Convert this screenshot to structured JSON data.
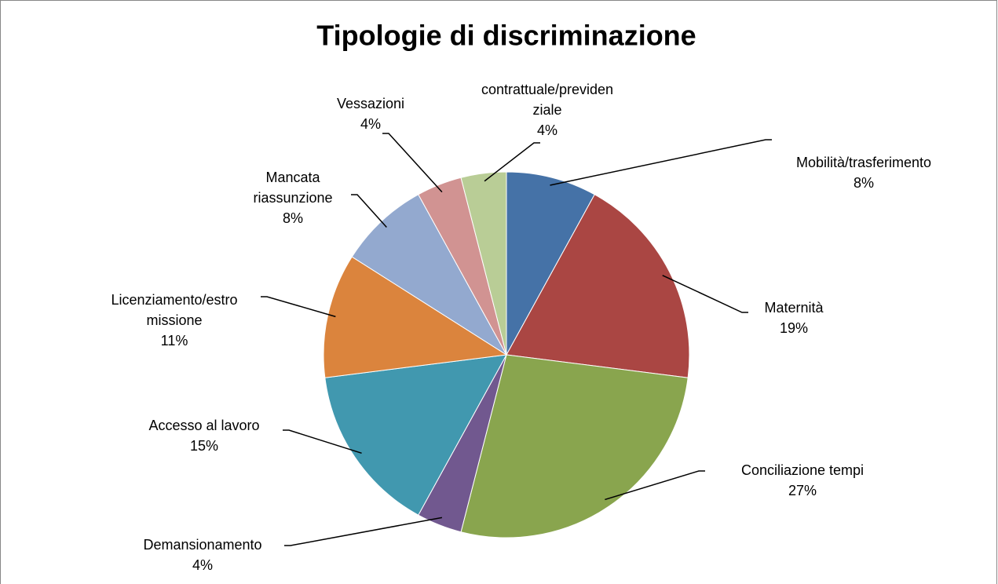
{
  "chart_data": {
    "type": "pie",
    "title": "Tipologie di discriminazione",
    "categories": [
      "Mobilità/trasferimento",
      "Maternità",
      "Conciliazione tempi",
      "Demansionamento",
      "Accesso al lavoro",
      "Licenziamento/estromissione",
      "Mancata riassunzione",
      "Vessazioni",
      "contrattuale/previdenziale"
    ],
    "values": [
      8,
      19,
      27,
      4,
      15,
      11,
      8,
      4,
      4
    ],
    "value_labels": [
      "8%",
      "19%",
      "27%",
      "4%",
      "15%",
      "11%",
      "8%",
      "4%",
      "4%"
    ],
    "colors": [
      "#4572a7",
      "#aa4643",
      "#89a54e",
      "#71588f",
      "#4198af",
      "#db843d",
      "#93a9cf",
      "#d19392",
      "#b9cd96"
    ]
  }
}
